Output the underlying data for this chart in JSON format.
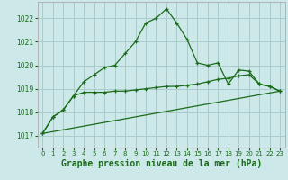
{
  "background_color": "#cce8e8",
  "grid_color": "#aacccc",
  "line_color": "#1a6b1a",
  "xlabel": "Graphe pression niveau de la mer (hPa)",
  "xlabel_fontsize": 7.0,
  "ylim": [
    1016.5,
    1022.7
  ],
  "xlim": [
    -0.5,
    23.5
  ],
  "yticks": [
    1017,
    1018,
    1019,
    1020,
    1021,
    1022
  ],
  "xticks": [
    0,
    1,
    2,
    3,
    4,
    5,
    6,
    7,
    8,
    9,
    10,
    11,
    12,
    13,
    14,
    15,
    16,
    17,
    18,
    19,
    20,
    21,
    22,
    23
  ],
  "series1": {
    "x": [
      0,
      1,
      2,
      3,
      4,
      5,
      6,
      7,
      8,
      9,
      10,
      11,
      12,
      13,
      14,
      15,
      16,
      17,
      18,
      19,
      20,
      21,
      22,
      23
    ],
    "y": [
      1017.1,
      1017.8,
      1018.1,
      1018.7,
      1019.3,
      1019.6,
      1019.9,
      1020.0,
      1020.5,
      1021.0,
      1021.8,
      1022.0,
      1022.4,
      1021.8,
      1021.1,
      1020.1,
      1020.0,
      1020.1,
      1019.2,
      1019.8,
      1019.75,
      1019.2,
      1019.1,
      1018.9
    ]
  },
  "series2": {
    "x": [
      0,
      1,
      2,
      3,
      4,
      5,
      6,
      7,
      8,
      9,
      10,
      11,
      12,
      13,
      14,
      15,
      16,
      17,
      18,
      19,
      20,
      21,
      22,
      23
    ],
    "y": [
      1017.1,
      1017.8,
      1018.1,
      1018.7,
      1018.85,
      1018.85,
      1018.85,
      1018.9,
      1018.9,
      1018.95,
      1019.0,
      1019.05,
      1019.1,
      1019.1,
      1019.15,
      1019.2,
      1019.3,
      1019.4,
      1019.45,
      1019.55,
      1019.6,
      1019.2,
      1019.1,
      1018.9
    ]
  },
  "series3": {
    "x": [
      0,
      23
    ],
    "y": [
      1017.1,
      1018.9
    ]
  }
}
